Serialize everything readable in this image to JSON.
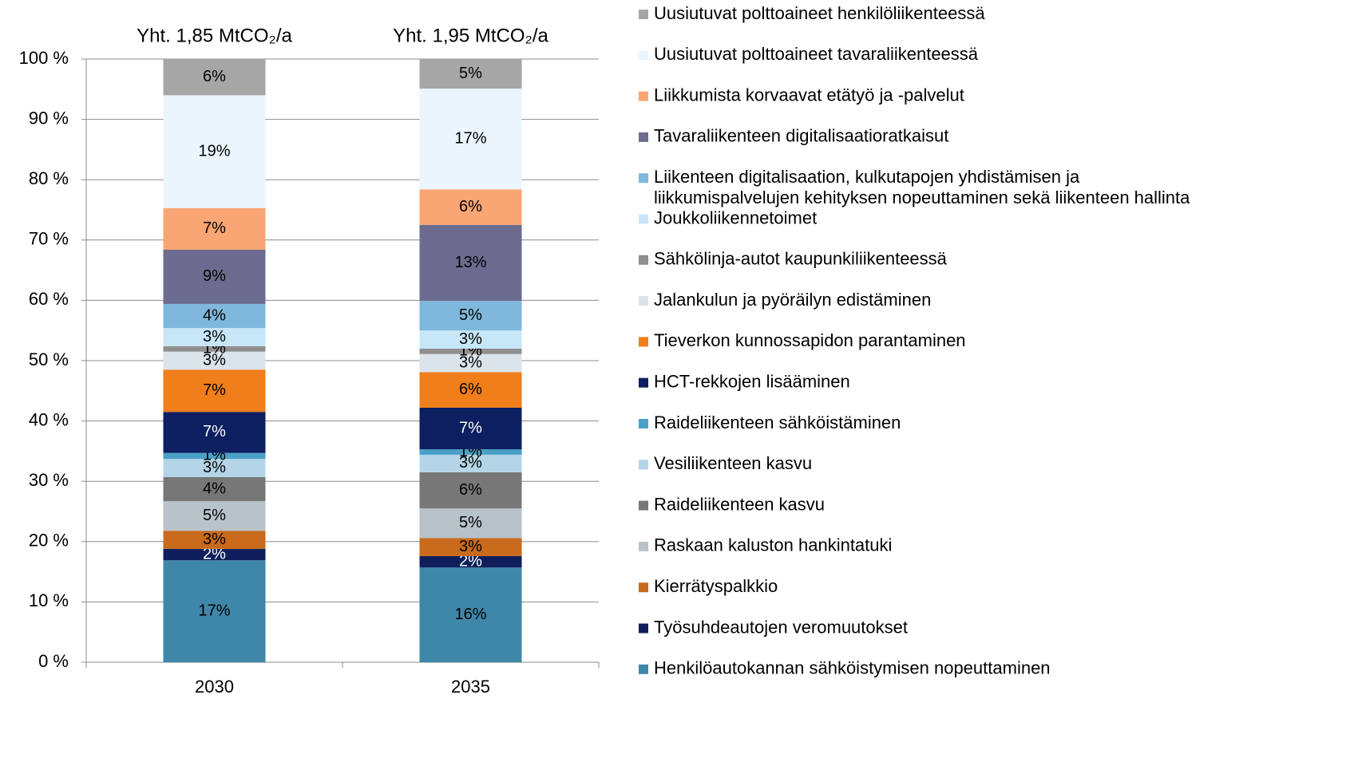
{
  "chart_data": {
    "type": "stacked_bar",
    "categories": [
      "2030",
      "2035"
    ],
    "totals": [
      "Yht. 1,85 MtCO₂/a",
      "Yht. 1,95 MtCO₂/a"
    ],
    "ylim": [
      0,
      100
    ],
    "yticks": [
      {
        "value": 0,
        "label": "0 %"
      },
      {
        "value": 10,
        "label": "10 %"
      },
      {
        "value": 20,
        "label": "20 %"
      },
      {
        "value": 30,
        "label": "30 %"
      },
      {
        "value": 40,
        "label": "40 %"
      },
      {
        "value": 50,
        "label": "50 %"
      },
      {
        "value": 60,
        "label": "60 %"
      },
      {
        "value": 70,
        "label": "70 %"
      },
      {
        "value": 80,
        "label": "80 %"
      },
      {
        "value": 90,
        "label": "90 %"
      },
      {
        "value": 100,
        "label": "100 %"
      }
    ],
    "grid": true,
    "legend": "right",
    "series": [
      {
        "name": "Henkilöautokannan sähköistymisen nopeuttaminen",
        "color": "#3f87a9",
        "values": [
          16.9,
          15.7
        ],
        "value_labels": [
          "17%",
          "16%"
        ]
      },
      {
        "name": "Työsuhdeautojen veromuutokset",
        "color": "#0f1f5c",
        "values": [
          1.9,
          1.9
        ],
        "value_labels": [
          "2%",
          "2%"
        ]
      },
      {
        "name": "Kierrätyspalkkio",
        "color": "#c96a1c",
        "values": [
          3.0,
          3.0
        ],
        "value_labels": [
          "3%",
          "3%"
        ]
      },
      {
        "name": "Raskaan kaluston hankintatuki",
        "color": "#b8c2c9",
        "values": [
          4.9,
          4.9
        ],
        "value_labels": [
          "5%",
          "5%"
        ]
      },
      {
        "name": "Raideliikenteen kasvu",
        "color": "#777777",
        "values": [
          4.0,
          6.0
        ],
        "value_labels": [
          "4%",
          "6%"
        ]
      },
      {
        "name": "Vesiliikenteen kasvu",
        "color": "#b4d5e7",
        "values": [
          3.0,
          2.9
        ],
        "value_labels": [
          "3%",
          "3%"
        ]
      },
      {
        "name": "Raideliikenteen sähköistäminen",
        "color": "#4aa0c6",
        "values": [
          1.0,
          0.9
        ],
        "value_labels": [
          "1%",
          "1%"
        ]
      },
      {
        "name": "HCT-rekkojen lisääminen",
        "color": "#0d1f60",
        "values": [
          6.8,
          6.9
        ],
        "value_labels": [
          "7%",
          "7%"
        ]
      },
      {
        "name": "Tieverkon kunnossapidon parantaminen",
        "color": "#f07e1a",
        "values": [
          7.0,
          5.9
        ],
        "value_labels": [
          "7%",
          "6%"
        ]
      },
      {
        "name": "Jalankulun ja pyöräilyn edistäminen",
        "color": "#dbe4ea",
        "values": [
          3.0,
          3.0
        ],
        "value_labels": [
          "3%",
          "3%"
        ]
      },
      {
        "name": "Sähkölinja-autot kaupunkiliikenteessä",
        "color": "#8f8f8f",
        "values": [
          0.9,
          0.9
        ],
        "value_labels": [
          "1%",
          "1%"
        ]
      },
      {
        "name": "Joukkoliikennetoimet",
        "color": "#c7e7f8",
        "values": [
          3.0,
          3.0
        ],
        "value_labels": [
          "3%",
          "3%"
        ]
      },
      {
        "name": "Liikenteen digitalisaation, kulkutapojen yhdistämisen ja\nliikkumispalvelujen kehityksen nopeuttaminen sekä liikenteen hallinta",
        "color": "#7fb8dc",
        "values": [
          4.0,
          4.9
        ],
        "value_labels": [
          "4%",
          "5%"
        ]
      },
      {
        "name": "Tavaraliikenteen digitalisaatioratkaisut",
        "color": "#6b6c8f",
        "values": [
          9.0,
          12.6
        ],
        "value_labels": [
          "9%",
          "13%"
        ]
      },
      {
        "name": "Liikkumista korvaavat etätyö ja -palvelut",
        "color": "#f9a574",
        "values": [
          6.9,
          5.9
        ],
        "value_labels": [
          "7%",
          "6%"
        ]
      },
      {
        "name": "Uusiutuvat polttoaineet tavaraliikenteessä",
        "color": "#eaf5fd",
        "values": [
          18.7,
          16.7
        ],
        "value_labels": [
          "19%",
          "17%"
        ]
      },
      {
        "name": "Uusiutuvat polttoaineet henkilöliikenteessä",
        "color": "#a6a6a6",
        "values": [
          6.0,
          4.9
        ],
        "value_labels": [
          "6%",
          "5%"
        ]
      }
    ]
  }
}
